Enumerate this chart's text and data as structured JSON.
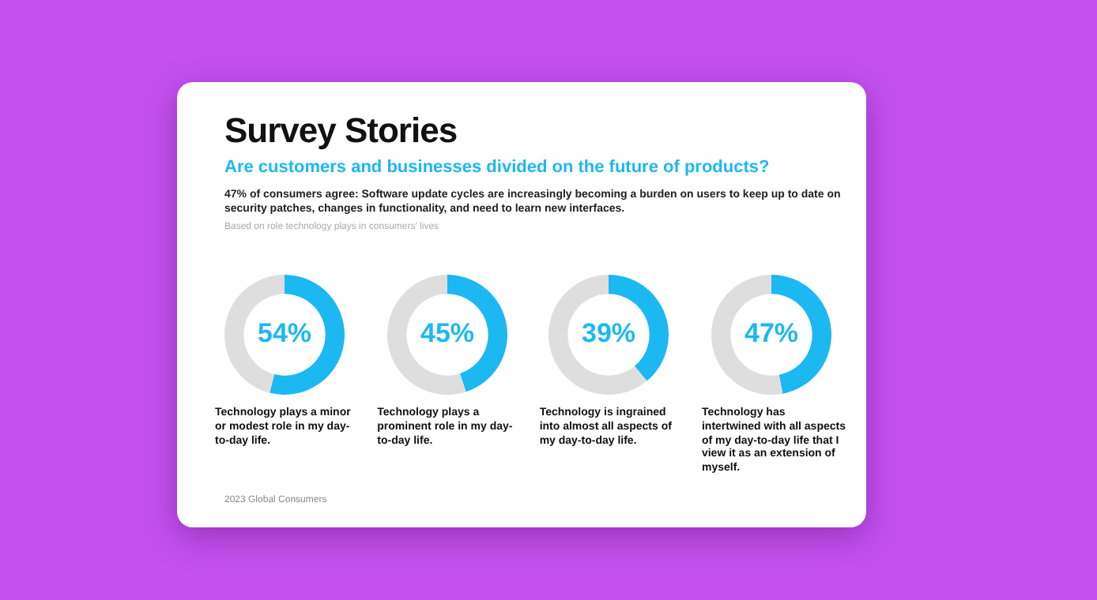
{
  "chart_data": [
    {
      "type": "other",
      "title": "Survey Stories",
      "subtitle": "Are customers and businesses divided on the future of products?",
      "annotations": [
        "47% of consumers agree: Software update cycles are increasingly becoming a burden on users to keep up to date on security patches, changes in functionality, and need to learn new interfaces.",
        "Based on role technology plays in consumers' lives",
        "2023 Global Consumers"
      ]
    },
    {
      "type": "donut",
      "categories": [
        null,
        null
      ],
      "values": [
        54,
        46
      ],
      "colors": [
        "#1cb8f2",
        "#dedede"
      ],
      "value_labels": [
        "54%",
        null
      ],
      "annotations": [
        "Technology plays a minor or modest role in my day-to-day life."
      ]
    },
    {
      "type": "donut",
      "categories": [
        null,
        null
      ],
      "values": [
        45,
        55
      ],
      "colors": [
        "#1cb8f2",
        "#dedede"
      ],
      "value_labels": [
        "45%",
        null
      ],
      "annotations": [
        "Technology plays a prominent role in my day-to-day life."
      ]
    },
    {
      "type": "donut",
      "categories": [
        null,
        null
      ],
      "values": [
        39,
        61
      ],
      "colors": [
        "#1cb8f2",
        "#dedede"
      ],
      "value_labels": [
        "39%",
        null
      ],
      "annotations": [
        "Technology is ingrained into almost all aspects of my day-to-day life."
      ]
    },
    {
      "type": "donut",
      "categories": [
        null,
        null
      ],
      "values": [
        47,
        53
      ],
      "colors": [
        "#1cb8f2",
        "#dedede"
      ],
      "value_labels": [
        "47%",
        null
      ],
      "annotations": [
        "Technology has intertwined with all aspects of my day-to-day life that I view it as an extension of myself."
      ]
    }
  ]
}
